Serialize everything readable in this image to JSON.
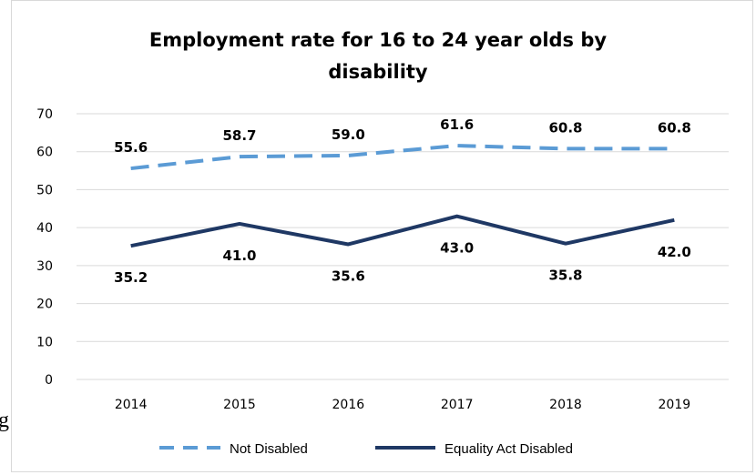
{
  "stray_text": "g",
  "chart_data": {
    "type": "line",
    "title_lines": [
      "Employment rate for 16 to 24 year olds by",
      "disability"
    ],
    "categories": [
      "2014",
      "2015",
      "2016",
      "2017",
      "2018",
      "2019"
    ],
    "ylim": [
      0,
      70
    ],
    "yticks": [
      "0",
      "10",
      "20",
      "30",
      "40",
      "50",
      "60",
      "70"
    ],
    "grid": true,
    "legend_position": "bottom",
    "series": [
      {
        "name": "Not Disabled",
        "values": [
          55.6,
          58.7,
          59.0,
          61.6,
          60.8,
          60.8
        ],
        "labels": [
          "55.6",
          "58.7",
          "59.0",
          "61.6",
          "60.8",
          "60.8"
        ],
        "color": "#5b9bd5",
        "dash": "dashed",
        "label_position": "above"
      },
      {
        "name": "Equality Act Disabled",
        "values": [
          35.2,
          41.0,
          35.6,
          43.0,
          35.8,
          42.0
        ],
        "labels": [
          "35.2",
          "41.0",
          "35.6",
          "43.0",
          "35.8",
          "42.0"
        ],
        "color": "#1f3864",
        "dash": "solid",
        "label_position": "below"
      }
    ]
  }
}
